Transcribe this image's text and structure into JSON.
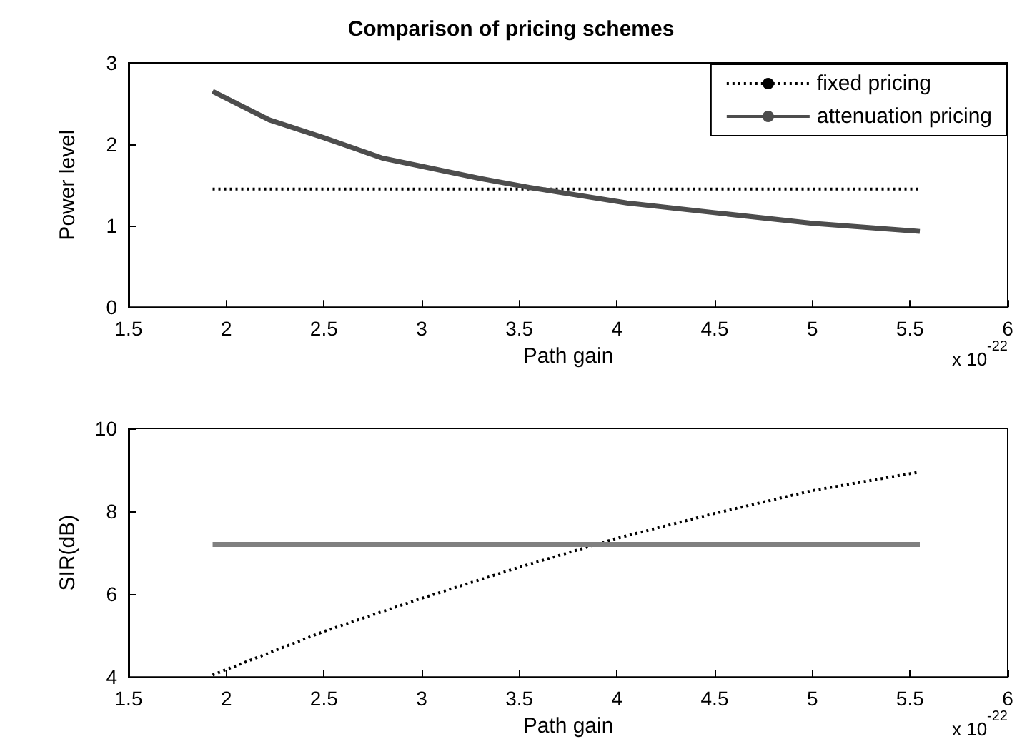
{
  "chart_data": [
    {
      "type": "line",
      "title": "Comparison of pricing schemes",
      "xlabel": "Path gain",
      "ylabel": "Power level",
      "annotations": [
        "x 10$^{-22}$"
      ],
      "xlim": [
        1.5,
        6
      ],
      "xticks": [
        1.5,
        2,
        2.5,
        3,
        3.5,
        4,
        4.5,
        5,
        5.5,
        6
      ],
      "ylim": [
        0,
        3
      ],
      "yticks": [
        0,
        1,
        2,
        3
      ],
      "grid": false,
      "legend": "top right",
      "marker": "none",
      "series": [
        {
          "name": "fixed pricing",
          "color": "#000000",
          "line_style": "dotted",
          "x": [
            1.93,
            5.55
          ],
          "values": [
            1.45,
            1.45
          ]
        },
        {
          "name": "attenuation pricing",
          "color": "#4d4d4d",
          "line_style": "solid",
          "x": [
            1.93,
            2.22,
            2.5,
            2.8,
            3.3,
            3.55,
            4.05,
            4.5,
            5,
            5.55
          ],
          "values": [
            2.65,
            2.3,
            2.08,
            1.83,
            1.58,
            1.47,
            1.28,
            1.16,
            1.03,
            0.93
          ]
        }
      ]
    },
    {
      "type": "line",
      "xlabel": "Path gain",
      "ylabel": "SIR(dB)",
      "annotations": [
        "x 10$^{-22}$"
      ],
      "xlim": [
        1.5,
        6
      ],
      "xticks": [
        1.5,
        2,
        2.5,
        3,
        3.5,
        4,
        4.5,
        5,
        5.5,
        6
      ],
      "ylim": [
        4,
        10
      ],
      "yticks": [
        4,
        6,
        8,
        10
      ],
      "grid": false,
      "legend": false,
      "marker": "none",
      "series": [
        {
          "color": "#000000",
          "line_style": "dotted",
          "x": [
            1.93,
            2.5,
            3,
            3.5,
            4,
            4.5,
            5,
            5.55
          ],
          "values": [
            4.05,
            5.1,
            5.9,
            6.65,
            7.35,
            7.95,
            8.5,
            8.95
          ]
        },
        {
          "color": "#808080",
          "line_style": "solid",
          "x": [
            1.93,
            5.55
          ],
          "values": [
            7.2,
            7.2
          ]
        }
      ]
    }
  ]
}
